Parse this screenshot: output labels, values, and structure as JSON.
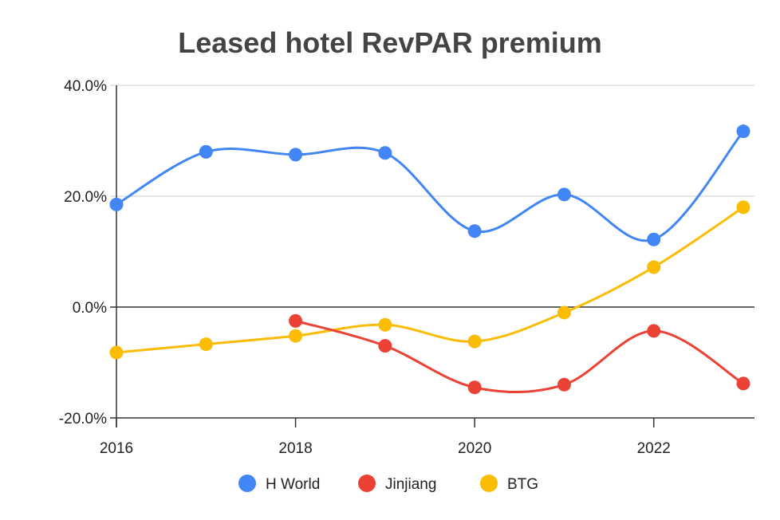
{
  "chart_data": {
    "type": "line",
    "title": "Leased hotel RevPAR premium",
    "xlabel": "",
    "ylabel": "",
    "x": [
      2016,
      2017,
      2018,
      2019,
      2020,
      2021,
      2022,
      2023
    ],
    "x_ticks": [
      2016,
      2018,
      2020,
      2022
    ],
    "x_tick_labels": [
      "2016",
      "2018",
      "2020",
      "2022"
    ],
    "xlim": [
      2016,
      2023
    ],
    "ylim": [
      -20,
      40
    ],
    "y_ticks": [
      40,
      20,
      0,
      -20
    ],
    "y_tick_labels": [
      "40.0%",
      "20.0%",
      "0.0%",
      "-20.0%"
    ],
    "grid": true,
    "legend_position": "bottom",
    "smooth": true,
    "series": [
      {
        "name": "H World",
        "color": "#4285f4",
        "values": [
          18.5,
          28.0,
          27.5,
          27.8,
          13.7,
          20.3,
          12.2,
          31.7
        ]
      },
      {
        "name": "Jinjiang",
        "color": "#ea4335",
        "values": [
          null,
          null,
          -2.5,
          -7.0,
          -14.5,
          -14.0,
          -4.3,
          -13.8
        ]
      },
      {
        "name": "BTG",
        "color": "#fbbc04",
        "values": [
          -8.2,
          -6.7,
          -5.2,
          -3.2,
          -6.2,
          -1.0,
          7.2,
          18.0
        ]
      }
    ]
  }
}
